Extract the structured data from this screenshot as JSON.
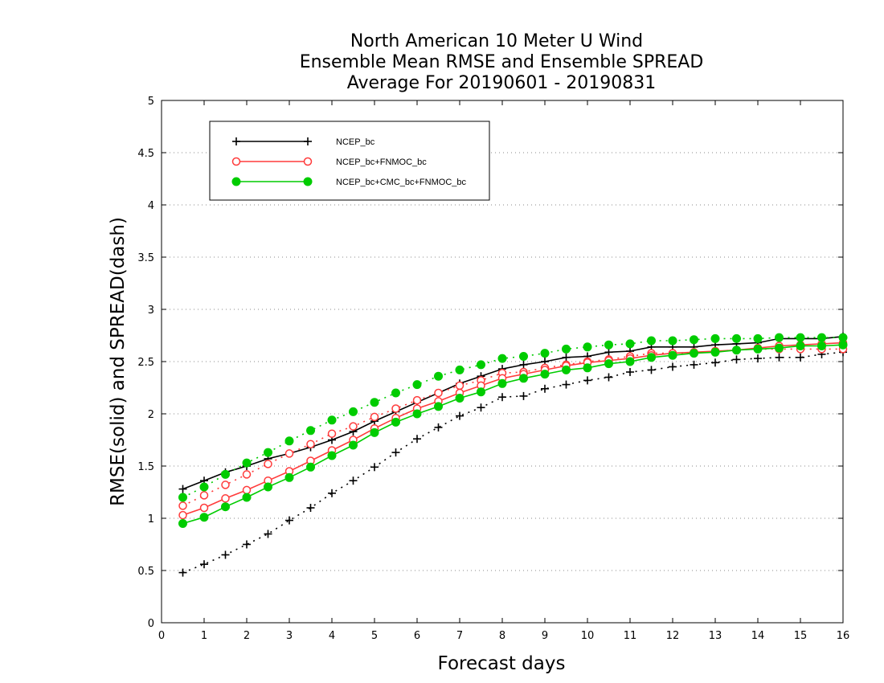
{
  "chart_data": {
    "type": "line",
    "title": [
      "North American 10 Meter U Wind",
      "Ensemble Mean RMSE and Ensemble SPREAD",
      "Average For 20190601 - 20190831"
    ],
    "xlabel": "Forecast days",
    "ylabel": "RMSE(solid) and SPREAD(dash)",
    "xlim": [
      0,
      16
    ],
    "ylim": [
      0,
      5
    ],
    "xticks": [
      "0",
      "1",
      "2",
      "3",
      "4",
      "5",
      "6",
      "7",
      "8",
      "9",
      "10",
      "11",
      "12",
      "13",
      "14",
      "15",
      "16"
    ],
    "yticks": [
      "0",
      "0.5",
      "1",
      "1.5",
      "2",
      "2.5",
      "3",
      "3.5",
      "4",
      "4.5",
      "5"
    ],
    "grid": "horizontal dotted",
    "legend_position": "top-left",
    "x": [
      0.5,
      1,
      1.5,
      2,
      2.5,
      3,
      3.5,
      4,
      4.5,
      5,
      5.5,
      6,
      6.5,
      7,
      7.5,
      8,
      8.5,
      9,
      9.5,
      10,
      10.5,
      11,
      11.5,
      12,
      12.5,
      13,
      13.5,
      14,
      14.5,
      15,
      15.5,
      16
    ],
    "series": [
      {
        "name": "NCEP_bc",
        "color": "#000000",
        "marker": "plus",
        "rmse": [
          1.28,
          1.36,
          1.44,
          1.5,
          1.57,
          1.62,
          1.68,
          1.75,
          1.83,
          1.93,
          2.02,
          2.11,
          2.2,
          2.29,
          2.36,
          2.43,
          2.47,
          2.5,
          2.54,
          2.55,
          2.59,
          2.6,
          2.64,
          2.64,
          2.64,
          2.66,
          2.67,
          2.68,
          2.72,
          2.72,
          2.72,
          2.74
        ],
        "spread": [
          0.48,
          0.56,
          0.65,
          0.75,
          0.85,
          0.98,
          1.1,
          1.24,
          1.36,
          1.49,
          1.63,
          1.76,
          1.87,
          1.98,
          2.06,
          2.16,
          2.17,
          2.24,
          2.28,
          2.32,
          2.35,
          2.4,
          2.42,
          2.45,
          2.47,
          2.49,
          2.52,
          2.53,
          2.54,
          2.54,
          2.57,
          2.59
        ]
      },
      {
        "name": "NCEP_bc+FNMOC_bc",
        "color": "#ff3b3b",
        "marker": "open-circle",
        "rmse": [
          1.03,
          1.1,
          1.19,
          1.27,
          1.36,
          1.45,
          1.55,
          1.65,
          1.75,
          1.86,
          1.96,
          2.05,
          2.12,
          2.2,
          2.27,
          2.34,
          2.38,
          2.42,
          2.46,
          2.49,
          2.51,
          2.53,
          2.56,
          2.58,
          2.59,
          2.6,
          2.61,
          2.63,
          2.65,
          2.66,
          2.67,
          2.68
        ],
        "spread": [
          1.12,
          1.22,
          1.32,
          1.42,
          1.52,
          1.62,
          1.71,
          1.81,
          1.88,
          1.97,
          2.05,
          2.13,
          2.2,
          2.27,
          2.32,
          2.39,
          2.4,
          2.44,
          2.47,
          2.5,
          2.52,
          2.55,
          2.58,
          2.58,
          2.58,
          2.6,
          2.61,
          2.62,
          2.62,
          2.62,
          2.62,
          2.62
        ]
      },
      {
        "name": "NCEP_bc+CMC_bc+FNMOC_bc",
        "color": "#00cc00",
        "marker": "filled-circle",
        "rmse": [
          0.95,
          1.01,
          1.11,
          1.2,
          1.3,
          1.39,
          1.49,
          1.6,
          1.7,
          1.82,
          1.92,
          2.0,
          2.07,
          2.15,
          2.21,
          2.29,
          2.34,
          2.38,
          2.42,
          2.44,
          2.48,
          2.5,
          2.54,
          2.56,
          2.58,
          2.59,
          2.61,
          2.62,
          2.63,
          2.65,
          2.65,
          2.66
        ],
        "spread": [
          1.2,
          1.3,
          1.42,
          1.53,
          1.63,
          1.74,
          1.84,
          1.94,
          2.02,
          2.11,
          2.2,
          2.28,
          2.36,
          2.42,
          2.47,
          2.53,
          2.55,
          2.58,
          2.62,
          2.64,
          2.66,
          2.67,
          2.7,
          2.7,
          2.71,
          2.72,
          2.72,
          2.72,
          2.73,
          2.73,
          2.73,
          2.73
        ]
      }
    ]
  }
}
